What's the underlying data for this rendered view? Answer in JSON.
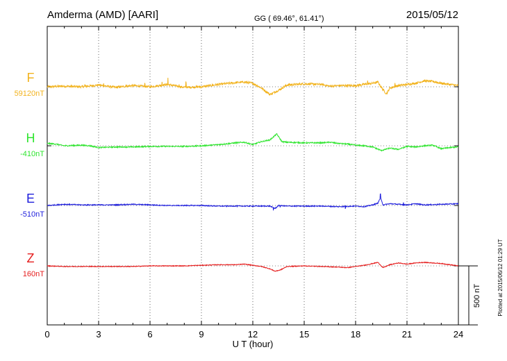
{
  "header": {
    "station": "Amderma (AMD)  [AARI]",
    "coords": "GG ( 69.46°,  61.41°)",
    "date": "2015/05/12"
  },
  "footer": {
    "plotted": "Plotted at 2015/06/12 01:29 UT"
  },
  "chart_data": {
    "type": "line",
    "xlabel": "U T (hour)",
    "xlim": [
      0,
      24
    ],
    "xticks": [
      "0",
      "3",
      "6",
      "9",
      "12",
      "15",
      "18",
      "21",
      "24"
    ],
    "scale_bar_label": "500 nT",
    "scale_nT": 500,
    "series": [
      {
        "name": "F",
        "baseline": "59120nT",
        "color": "#f2b31e",
        "points": [
          [
            0,
            0
          ],
          [
            1,
            5
          ],
          [
            2,
            0
          ],
          [
            3,
            15
          ],
          [
            4,
            -5
          ],
          [
            5,
            10
          ],
          [
            6,
            0
          ],
          [
            7,
            20
          ],
          [
            8,
            -5
          ],
          [
            9,
            0
          ],
          [
            10,
            20
          ],
          [
            11,
            35
          ],
          [
            11.5,
            40
          ],
          [
            12,
            30
          ],
          [
            12.5,
            -10
          ],
          [
            13,
            -65
          ],
          [
            13.5,
            -30
          ],
          [
            14,
            15
          ],
          [
            15,
            25
          ],
          [
            16,
            20
          ],
          [
            16.5,
            5
          ],
          [
            17,
            10
          ],
          [
            18,
            10
          ],
          [
            18.5,
            20
          ],
          [
            19,
            30
          ],
          [
            19.3,
            40
          ],
          [
            19.5,
            -5
          ],
          [
            19.8,
            -60
          ],
          [
            20,
            -10
          ],
          [
            20.5,
            10
          ],
          [
            21,
            20
          ],
          [
            21.5,
            30
          ],
          [
            22,
            50
          ],
          [
            22.5,
            45
          ],
          [
            23,
            30
          ],
          [
            24,
            10
          ]
        ],
        "spikes": [
          [
            7.05,
            55
          ],
          [
            8.1,
            45
          ],
          [
            6.7,
            30
          ],
          [
            4.6,
            22
          ],
          [
            5.7,
            22
          ],
          [
            7.7,
            25
          ],
          [
            2.2,
            15
          ],
          [
            3.3,
            15
          ],
          [
            18.7,
            25
          ],
          [
            20.3,
            30
          ]
        ]
      },
      {
        "name": "H",
        "baseline": "-410nT",
        "color": "#2ee52e",
        "points": [
          [
            0,
            20
          ],
          [
            0.5,
            15
          ],
          [
            1,
            0
          ],
          [
            2,
            5
          ],
          [
            2.5,
            0
          ],
          [
            3,
            -15
          ],
          [
            4,
            -10
          ],
          [
            5,
            -10
          ],
          [
            6,
            -5
          ],
          [
            7,
            -5
          ],
          [
            8,
            -5
          ],
          [
            9,
            0
          ],
          [
            10,
            10
          ],
          [
            11,
            25
          ],
          [
            11.5,
            30
          ],
          [
            12,
            10
          ],
          [
            12.5,
            35
          ],
          [
            13,
            50
          ],
          [
            13.4,
            100
          ],
          [
            13.7,
            35
          ],
          [
            14,
            30
          ],
          [
            15,
            25
          ],
          [
            16,
            25
          ],
          [
            16.5,
            30
          ],
          [
            17,
            20
          ],
          [
            17.5,
            15
          ],
          [
            18,
            5
          ],
          [
            18.5,
            0
          ],
          [
            19,
            -10
          ],
          [
            19.5,
            -40
          ],
          [
            20,
            -20
          ],
          [
            20.5,
            -30
          ],
          [
            21,
            -5
          ],
          [
            21.5,
            -10
          ],
          [
            22,
            0
          ],
          [
            22.5,
            5
          ],
          [
            23,
            -25
          ],
          [
            23.5,
            -15
          ],
          [
            24,
            -10
          ]
        ]
      },
      {
        "name": "E",
        "baseline": "-510nT",
        "color": "#1e1edc",
        "points": [
          [
            0,
            0
          ],
          [
            1,
            10
          ],
          [
            2,
            5
          ],
          [
            3,
            5
          ],
          [
            4,
            5
          ],
          [
            5,
            10
          ],
          [
            6,
            5
          ],
          [
            7,
            0
          ],
          [
            8,
            0
          ],
          [
            9,
            0
          ],
          [
            10,
            -5
          ],
          [
            11,
            -5
          ],
          [
            12,
            -5
          ],
          [
            13,
            -5
          ],
          [
            13.3,
            -25
          ],
          [
            13.5,
            0
          ],
          [
            14,
            -5
          ],
          [
            15,
            -5
          ],
          [
            16,
            -5
          ],
          [
            17,
            -10
          ],
          [
            18,
            -5
          ],
          [
            18.5,
            -10
          ],
          [
            19,
            5
          ],
          [
            19.3,
            20
          ],
          [
            19.45,
            65
          ],
          [
            19.6,
            5
          ],
          [
            20,
            15
          ],
          [
            20.5,
            10
          ],
          [
            21,
            5
          ],
          [
            21.5,
            15
          ],
          [
            22,
            5
          ],
          [
            23,
            10
          ],
          [
            24,
            15
          ]
        ],
        "spikes": [
          [
            13.2,
            -22
          ],
          [
            13.6,
            -15
          ],
          [
            17.4,
            -18
          ],
          [
            19.45,
            36
          ],
          [
            20.8,
            20
          ]
        ]
      },
      {
        "name": "Z",
        "baseline": "160nT",
        "color": "#e51c1c",
        "points": [
          [
            0,
            0
          ],
          [
            1,
            -5
          ],
          [
            2,
            -5
          ],
          [
            3,
            -5
          ],
          [
            4,
            -5
          ],
          [
            5,
            -5
          ],
          [
            6,
            0
          ],
          [
            7,
            0
          ],
          [
            8,
            0
          ],
          [
            9,
            5
          ],
          [
            10,
            10
          ],
          [
            11,
            10
          ],
          [
            11.5,
            15
          ],
          [
            12,
            5
          ],
          [
            12.5,
            -5
          ],
          [
            13,
            -25
          ],
          [
            13.3,
            -45
          ],
          [
            13.6,
            -35
          ],
          [
            14,
            -5
          ],
          [
            15,
            0
          ],
          [
            16,
            -5
          ],
          [
            17,
            -10
          ],
          [
            17.5,
            -15
          ],
          [
            18,
            -5
          ],
          [
            18.5,
            5
          ],
          [
            19,
            20
          ],
          [
            19.3,
            30
          ],
          [
            19.6,
            -15
          ],
          [
            20,
            10
          ],
          [
            20.5,
            25
          ],
          [
            21,
            15
          ],
          [
            21.5,
            25
          ],
          [
            22,
            30
          ],
          [
            23,
            20
          ],
          [
            24,
            0
          ]
        ]
      }
    ]
  }
}
